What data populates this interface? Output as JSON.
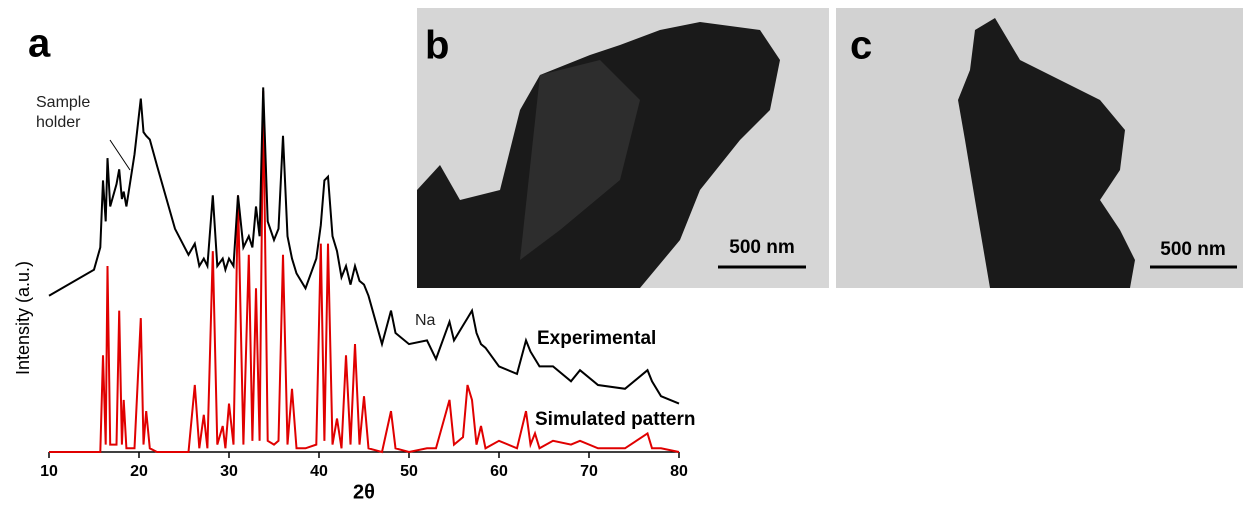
{
  "chart_data": {
    "type": "line",
    "panel_label": "a",
    "x_label": "2θ",
    "y_label": "Intensity (a.u.)",
    "xlim": [
      10,
      80
    ],
    "xticks": [
      10,
      20,
      30,
      40,
      50,
      60,
      70,
      80
    ],
    "ylim": [
      0,
      100
    ],
    "annotations": [
      "Sample holder",
      "Na"
    ],
    "x": [
      10,
      15,
      15.7,
      16,
      16.3,
      16.5,
      16.8,
      17.5,
      17.8,
      18.1,
      18.3,
      18.6,
      19.5,
      20.2,
      20.5,
      20.8,
      21.2,
      22,
      24,
      25.5,
      26.2,
      26.7,
      27.2,
      27.6,
      28.2,
      28.7,
      29.3,
      29.6,
      30,
      30.5,
      31,
      31.6,
      32.2,
      32.6,
      33,
      33.4,
      33.8,
      34.3,
      35,
      35.5,
      36,
      36.5,
      37,
      37.5,
      38.5,
      39.7,
      40.2,
      40.6,
      41,
      41.5,
      42,
      42.5,
      43,
      43.5,
      44,
      44.5,
      45,
      45.5,
      47,
      48,
      48.5,
      50,
      52,
      53,
      54.5,
      55,
      56,
      56.5,
      57,
      57.5,
      58,
      58.5,
      60,
      62,
      63,
      63.5,
      64,
      64.5,
      66,
      68,
      69,
      71,
      74,
      76.5,
      77,
      78,
      80
    ],
    "series": [
      {
        "name": "Experimental",
        "color": "#000000",
        "values": [
          42,
          49,
          55,
          73,
          62,
          79,
          66,
          72,
          76,
          68,
          70,
          66,
          80,
          95,
          86,
          85,
          84,
          77,
          60,
          53,
          56,
          50,
          52,
          50,
          69,
          50,
          52,
          49,
          52,
          50,
          69,
          55,
          58,
          55,
          66,
          58,
          98,
          62,
          57,
          60,
          85,
          58,
          52,
          48,
          44,
          52,
          61,
          73,
          74,
          58,
          54,
          47,
          50,
          45,
          50,
          46,
          45,
          42,
          29,
          38,
          32,
          29,
          30,
          25,
          35,
          30,
          34,
          36,
          38,
          32,
          29,
          28,
          23,
          21,
          30,
          27,
          25,
          23,
          23,
          19,
          22,
          18,
          17,
          22,
          19,
          15,
          13
        ]
      },
      {
        "name": "Simulated pattern",
        "color": "#e00000",
        "values": [
          0,
          0,
          0,
          26,
          2,
          50,
          2,
          2,
          38,
          2,
          14,
          1,
          1,
          36,
          2,
          11,
          1,
          0,
          0,
          0,
          18,
          1,
          10,
          1,
          54,
          2,
          7,
          1,
          13,
          2,
          69,
          2,
          53,
          3,
          44,
          3,
          97,
          3,
          2,
          3,
          53,
          2,
          17,
          1,
          1,
          2,
          56,
          3,
          56,
          2,
          9,
          1,
          26,
          2,
          29,
          2,
          15,
          1,
          0,
          11,
          1,
          0,
          1,
          1,
          14,
          2,
          4,
          18,
          14,
          2,
          7,
          1,
          3,
          1,
          11,
          2,
          5,
          1,
          3,
          2,
          3,
          1,
          1,
          5,
          1,
          1,
          0
        ]
      }
    ]
  },
  "panels": [
    {
      "label": "b",
      "scale_bar": "500 nm"
    },
    {
      "label": "c",
      "scale_bar": "500 nm"
    }
  ]
}
